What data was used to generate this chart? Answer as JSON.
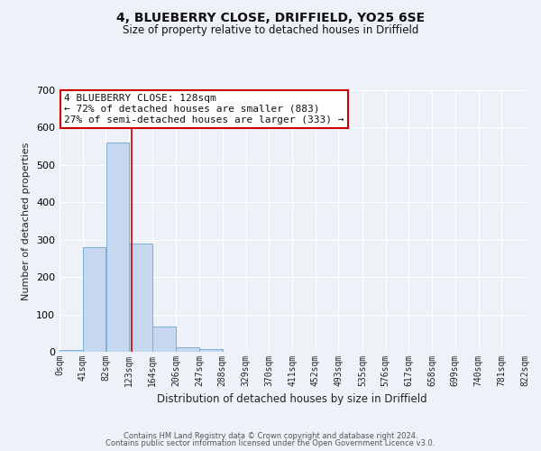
{
  "title": "4, BLUEBERRY CLOSE, DRIFFIELD, YO25 6SE",
  "subtitle": "Size of property relative to detached houses in Driffield",
  "xlabel": "Distribution of detached houses by size in Driffield",
  "ylabel": "Number of detached properties",
  "bin_edges": [
    0,
    41,
    82,
    123,
    164,
    206,
    247,
    288,
    329,
    370,
    411,
    452,
    493,
    535,
    576,
    617,
    658,
    699,
    740,
    781,
    822
  ],
  "bar_heights": [
    5,
    280,
    560,
    290,
    68,
    13,
    8,
    0,
    0,
    0,
    0,
    0,
    0,
    0,
    0,
    0,
    0,
    0,
    0,
    0
  ],
  "bar_color": "#c5d8f0",
  "bar_edge_color": "#7aafd4",
  "ylim": [
    0,
    700
  ],
  "yticks": [
    0,
    100,
    200,
    300,
    400,
    500,
    600,
    700
  ],
  "xtick_labels": [
    "0sqm",
    "41sqm",
    "82sqm",
    "123sqm",
    "164sqm",
    "206sqm",
    "247sqm",
    "288sqm",
    "329sqm",
    "370sqm",
    "411sqm",
    "452sqm",
    "493sqm",
    "535sqm",
    "576sqm",
    "617sqm",
    "658sqm",
    "699sqm",
    "740sqm",
    "781sqm",
    "822sqm"
  ],
  "property_line_x": 128,
  "annotation_title": "4 BLUEBERRY CLOSE: 128sqm",
  "annotation_line1": "← 72% of detached houses are smaller (883)",
  "annotation_line2": "27% of semi-detached houses are larger (333) →",
  "annotation_box_color": "#ffffff",
  "annotation_box_edge_color": "#cc0000",
  "property_line_color": "#cc0000",
  "background_color": "#eef2f8",
  "grid_color": "#ffffff",
  "footer_line1": "Contains HM Land Registry data © Crown copyright and database right 2024.",
  "footer_line2": "Contains public sector information licensed under the Open Government Licence v3.0."
}
